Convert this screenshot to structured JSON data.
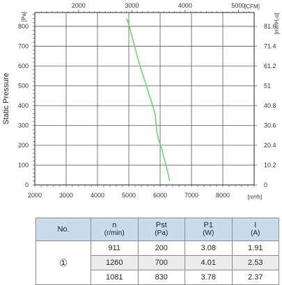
{
  "chart_data": {
    "type": "line",
    "ylabel": "Static Pressure",
    "y_left_unit": "[Pa]",
    "y_right_unit": "[mmH₂o]",
    "x_bottom_unit": "[m³/h]",
    "x_top_unit": "[CFM]",
    "x_bottom_ticks": [
      "2000",
      "3000",
      "4000",
      "5000",
      "6000",
      "7000",
      "8000"
    ],
    "x_top_ticks": [
      "2000",
      "3000",
      "4000",
      "5000"
    ],
    "y_left_ticks": [
      "0",
      "100",
      "200",
      "300",
      "400",
      "500",
      "600",
      "700",
      "800"
    ],
    "y_right_ticks": [
      "0",
      "10.2",
      "20.4",
      "30.6",
      "40.8",
      "51",
      "61.2",
      "71.4",
      "81.6"
    ],
    "xlim": [
      2000,
      9000
    ],
    "ylim": [
      0,
      870
    ],
    "grid": true,
    "series": [
      {
        "color": "#66dd66",
        "x": [
          4930,
          5020,
          5080,
          5150,
          5220,
          5300,
          5400,
          5500,
          5600,
          5700,
          5800,
          5850,
          5870,
          5890,
          5950,
          6050,
          6150,
          6250,
          6300
        ],
        "y": [
          840,
          800,
          760,
          720,
          680,
          630,
          580,
          530,
          480,
          430,
          380,
          350,
          310,
          270,
          230,
          180,
          120,
          60,
          20
        ]
      }
    ]
  },
  "table": {
    "headers": [
      {
        "label": "No.",
        "unit": ""
      },
      {
        "label": "n",
        "unit": "(r/min)"
      },
      {
        "label": "Pst",
        "unit": "(Pa)"
      },
      {
        "label": "P1",
        "unit": "(W)"
      },
      {
        "label": "I",
        "unit": "(A)"
      }
    ],
    "group_label": "①",
    "rows": [
      [
        "911",
        "200",
        "3.08",
        "1.91"
      ],
      [
        "1260",
        "700",
        "4.01",
        "2.53"
      ],
      [
        "1081",
        "830",
        "3.78",
        "2.37"
      ]
    ]
  }
}
